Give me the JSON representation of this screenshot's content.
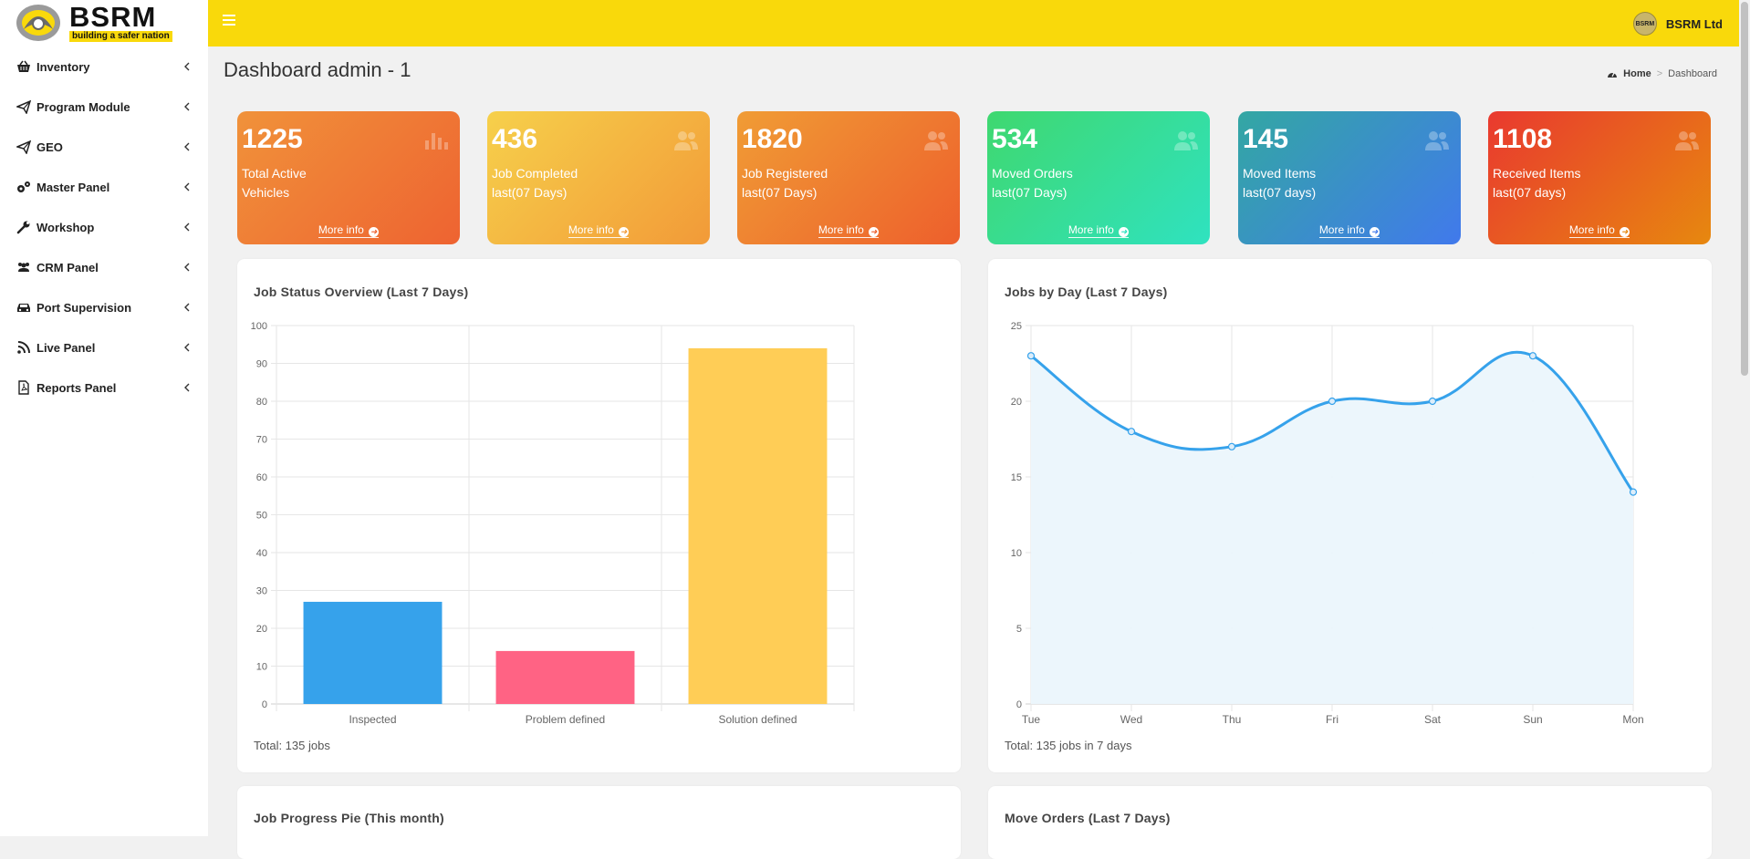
{
  "brand": {
    "name": "BSRM",
    "tagline": "building a safer nation"
  },
  "user": {
    "name": "BSRM Ltd",
    "avatar_text": "BSRM"
  },
  "sidebar": {
    "items": [
      {
        "label": "Inventory",
        "icon": "basket-icon"
      },
      {
        "label": "Program Module",
        "icon": "paper-plane-icon"
      },
      {
        "label": "GEO",
        "icon": "paper-plane-icon"
      },
      {
        "label": "Master Panel",
        "icon": "cogs-icon"
      },
      {
        "label": "Workshop",
        "icon": "wrench-icon"
      },
      {
        "label": "CRM Panel",
        "icon": "users-icon"
      },
      {
        "label": "Port Supervision",
        "icon": "car-icon"
      },
      {
        "label": "Live Panel",
        "icon": "rss-icon"
      },
      {
        "label": "Reports Panel",
        "icon": "pdf-file-icon"
      }
    ]
  },
  "page": {
    "title": "Dashboard admin - 1"
  },
  "breadcrumb": {
    "home": "Home",
    "separator": ">",
    "current": "Dashboard"
  },
  "info_boxes": [
    {
      "number": "1225",
      "label_line1": "Total Active",
      "label_line2": "Vehicles",
      "more": "More info",
      "icon": "bar-chart-icon",
      "colors": [
        "#f0923a",
        "#ee6331"
      ]
    },
    {
      "number": "436",
      "label_line1": "Job Completed",
      "label_line2": "last(07 Days)",
      "more": "More info",
      "icon": "users-icon",
      "colors": [
        "#f6d04b",
        "#f29a38"
      ]
    },
    {
      "number": "1820",
      "label_line1": "Job Registered",
      "label_line2": "last(07 Days)",
      "more": "More info",
      "icon": "users-icon",
      "colors": [
        "#f09c35",
        "#ed5f2c"
      ]
    },
    {
      "number": "534",
      "label_line1": "Moved Orders",
      "label_line2": "last(07 Days)",
      "more": "More info",
      "icon": "users-icon",
      "colors": [
        "#3fd86f",
        "#2fe2c0"
      ]
    },
    {
      "number": "145",
      "label_line1": "Moved Items",
      "label_line2": "last(07 days)",
      "more": "More info",
      "icon": "users-icon",
      "colors": [
        "#33a7a3",
        "#4179ec"
      ]
    },
    {
      "number": "1108",
      "label_line1": "Received Items",
      "label_line2": "last(07 days)",
      "more": "More info",
      "icon": "users-icon",
      "colors": [
        "#e9392f",
        "#e7880f"
      ]
    }
  ],
  "panels": {
    "job_status": {
      "title": "Job Status Overview (Last 7 Days)",
      "footer": "Total: 135 jobs"
    },
    "jobs_by_day": {
      "title": "Jobs by Day (Last 7 Days)",
      "footer": "Total: 135 jobs in 7 days"
    },
    "job_progress": {
      "title": "Job Progress Pie (This month)"
    },
    "move_orders": {
      "title": "Move Orders (Last 7 Days)"
    }
  },
  "chart_data": [
    {
      "type": "bar",
      "categories": [
        "Inspected",
        "Problem defined",
        "Solution defined"
      ],
      "values": [
        27,
        14,
        94
      ],
      "colors": [
        "#36a2eb",
        "#ff6384",
        "#ffcd56"
      ],
      "ylim": [
        0,
        100
      ],
      "yticks": [
        0,
        10,
        20,
        30,
        40,
        50,
        60,
        70,
        80,
        90,
        100
      ],
      "grid": true
    },
    {
      "type": "area",
      "categories": [
        "Tue",
        "Wed",
        "Thu",
        "Fri",
        "Sat",
        "Sun",
        "Mon"
      ],
      "values": [
        23,
        18,
        17,
        20,
        20,
        23,
        14
      ],
      "color": "#36a2eb",
      "fill": "#ebf5fc",
      "ylim": [
        0,
        25
      ],
      "yticks": [
        0,
        5,
        10,
        15,
        20,
        25
      ],
      "grid": true
    }
  ]
}
